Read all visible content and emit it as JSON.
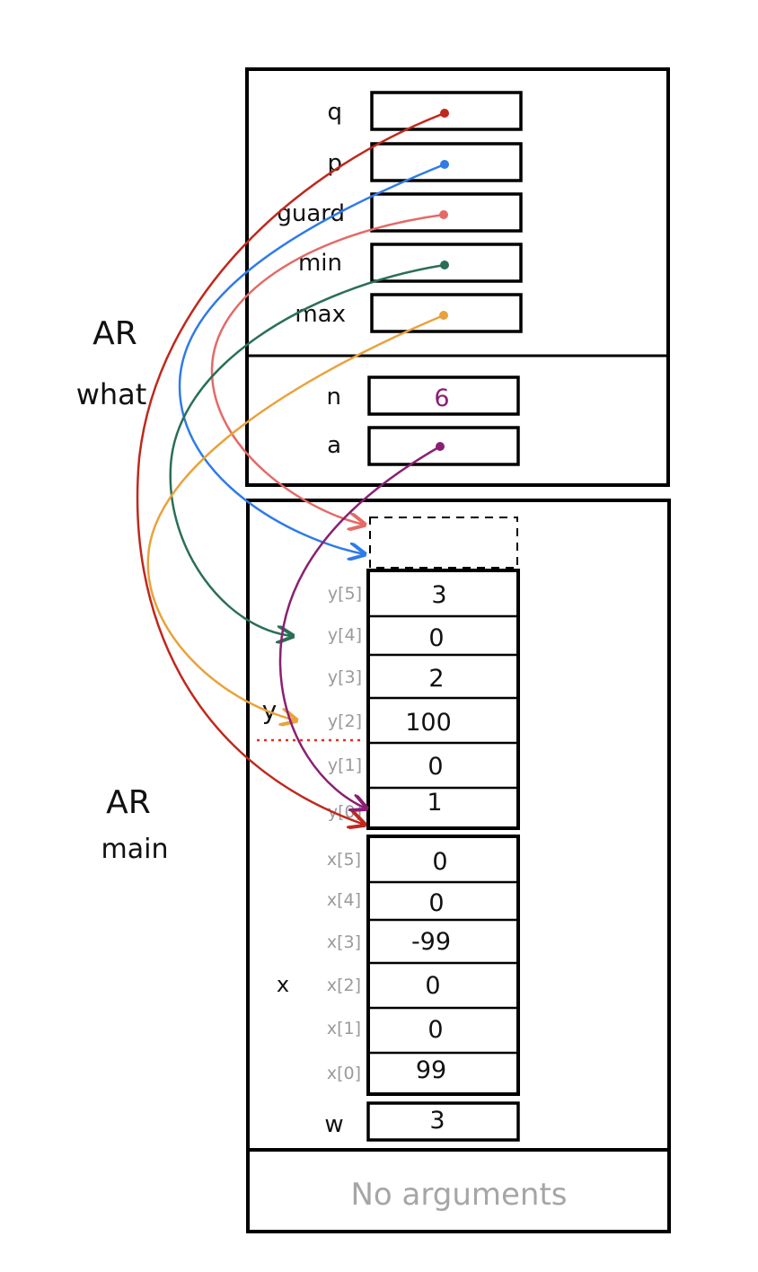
{
  "activation_records": {
    "what": {
      "title_line1": "AR",
      "title_line2": "what",
      "locals": [
        {
          "name": "q",
          "arrow_color": "#c0281d"
        },
        {
          "name": "p",
          "arrow_color": "#2f7be8"
        },
        {
          "name": "guard",
          "arrow_color": "#e46a66"
        },
        {
          "name": "min",
          "arrow_color": "#2a6f55"
        },
        {
          "name": "max",
          "arrow_color": "#e9a23b"
        }
      ],
      "params": [
        {
          "name": "n",
          "value": "6",
          "value_color": "#8a1f73"
        },
        {
          "name": "a",
          "arrow_color": "#8a1f73"
        }
      ]
    },
    "main": {
      "title_line1": "AR",
      "title_line2": "main",
      "y_array": {
        "label": "y",
        "cells": [
          {
            "index": "y[5]",
            "value": "3"
          },
          {
            "index": "y[4]",
            "value": "0"
          },
          {
            "index": "y[3]",
            "value": "2"
          },
          {
            "index": "y[2]",
            "value": "100"
          },
          {
            "index": "y[1]",
            "value": "0"
          },
          {
            "index": "y[0]",
            "value": "1"
          }
        ]
      },
      "x_array": {
        "label": "x",
        "cells": [
          {
            "index": "x[5]",
            "value": "0"
          },
          {
            "index": "x[4]",
            "value": "0"
          },
          {
            "index": "x[3]",
            "value": "-99"
          },
          {
            "index": "x[2]",
            "value": "0"
          },
          {
            "index": "x[1]",
            "value": "0"
          },
          {
            "index": "x[0]",
            "value": "99"
          }
        ]
      },
      "w": {
        "name": "w",
        "value": "3"
      }
    },
    "args": {
      "text": "No arguments"
    }
  },
  "colors": {
    "divider_dotted": "#e0301e",
    "index_gray": "#9a9a9a"
  }
}
